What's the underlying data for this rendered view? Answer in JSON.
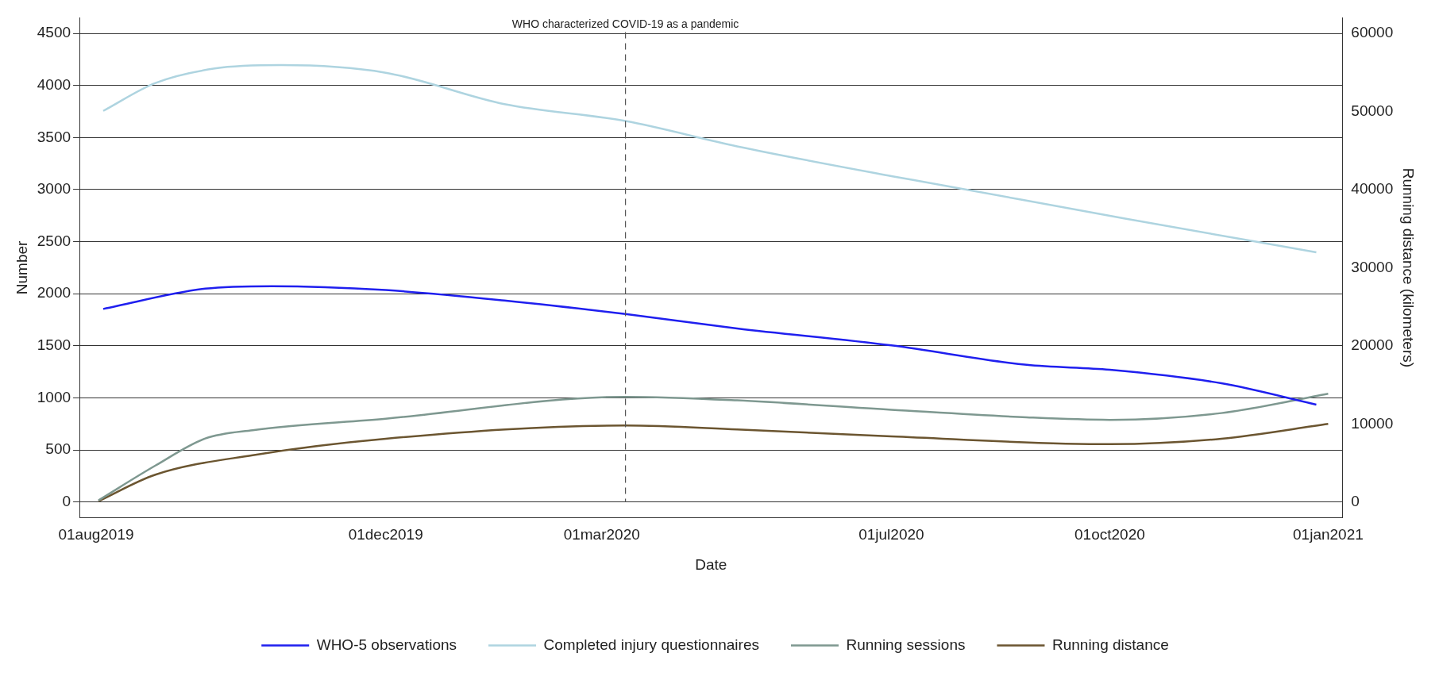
{
  "chart_data": {
    "type": "line",
    "xlabel": "Date",
    "ylabel": "Number",
    "y2label": "Running distance (kilometers)",
    "xlim": [
      "2019-07-25",
      "2021-01-07"
    ],
    "xticks": [
      {
        "value": "2019-08-01",
        "label": "01aug2019"
      },
      {
        "value": "2019-12-01",
        "label": "01dec2019"
      },
      {
        "value": "2020-03-01",
        "label": "01mar2020"
      },
      {
        "value": "2020-07-01",
        "label": "01jul2020"
      },
      {
        "value": "2020-10-01",
        "label": "01oct2020"
      },
      {
        "value": "2021-01-01",
        "label": "01jan2021"
      }
    ],
    "ylim": [
      -150,
      4650
    ],
    "yticks": [
      0,
      500,
      1000,
      1500,
      2000,
      2500,
      3000,
      3500,
      4000,
      4500
    ],
    "y2lim": [
      -2000,
      62000
    ],
    "y2ticks": [
      0,
      10000,
      20000,
      30000,
      40000,
      50000,
      60000
    ],
    "grid": "y",
    "legend": "bottom",
    "marker": "none",
    "line_style": "solid",
    "series": [
      {
        "name": "WHO-5 observations",
        "color": "#1f1fef",
        "x": [
          "2019-08-04",
          "2019-09-16",
          "2019-10-14",
          "2019-12-01",
          "2020-01-20",
          "2020-03-11",
          "2020-04-27",
          "2020-07-01",
          "2020-08-27",
          "2020-10-01",
          "2020-11-17",
          "2020-12-27"
        ],
        "values": [
          1854,
          2049,
          2073,
          2035,
          1935,
          1805,
          1667,
          1504,
          1317,
          1270,
          1140,
          935
        ]
      },
      {
        "name": "Completed injury questionnaires",
        "color": "#aed4e0",
        "x": [
          "2019-08-04",
          "2019-08-26",
          "2019-09-20",
          "2019-10-18",
          "2019-12-01",
          "2020-01-20",
          "2020-03-11",
          "2020-04-27",
          "2020-07-01",
          "2020-07-17",
          "2020-10-07",
          "2020-12-27"
        ],
        "values": [
          3756,
          4024,
          4163,
          4195,
          4122,
          3821,
          3658,
          3415,
          3130,
          3065,
          2724,
          2398
        ]
      },
      {
        "name": "Running sessions",
        "color": "#7e9890",
        "x": [
          "2019-08-02",
          "2019-08-26",
          "2019-09-16",
          "2019-10-06",
          "2019-12-01",
          "2020-03-11",
          "2020-04-27",
          "2020-07-01",
          "2020-08-27",
          "2020-10-01",
          "2020-11-17",
          "2021-01-01"
        ],
        "values": [
          16,
          350,
          610,
          690,
          800,
          1010,
          976,
          886,
          813,
          789,
          854,
          1040
        ]
      },
      {
        "name": "Running distance",
        "color": "#6b5530",
        "axis": "y2",
        "x": [
          "2019-08-02",
          "2019-08-26",
          "2019-10-06",
          "2019-12-01",
          "2020-03-11",
          "2020-04-27",
          "2020-07-01",
          "2020-10-01",
          "2020-11-17",
          "2021-01-01"
        ],
        "values": [
          100,
          3500,
          6000,
          8100,
          9800,
          9300,
          8400,
          7400,
          8100,
          10000
        ]
      }
    ],
    "ref_lines": [
      {
        "axis": "x",
        "value": "2020-03-11",
        "label": "WHO characterized COVID-19 as a pandemic",
        "line_style": "dashed",
        "color": "#555555"
      }
    ]
  }
}
